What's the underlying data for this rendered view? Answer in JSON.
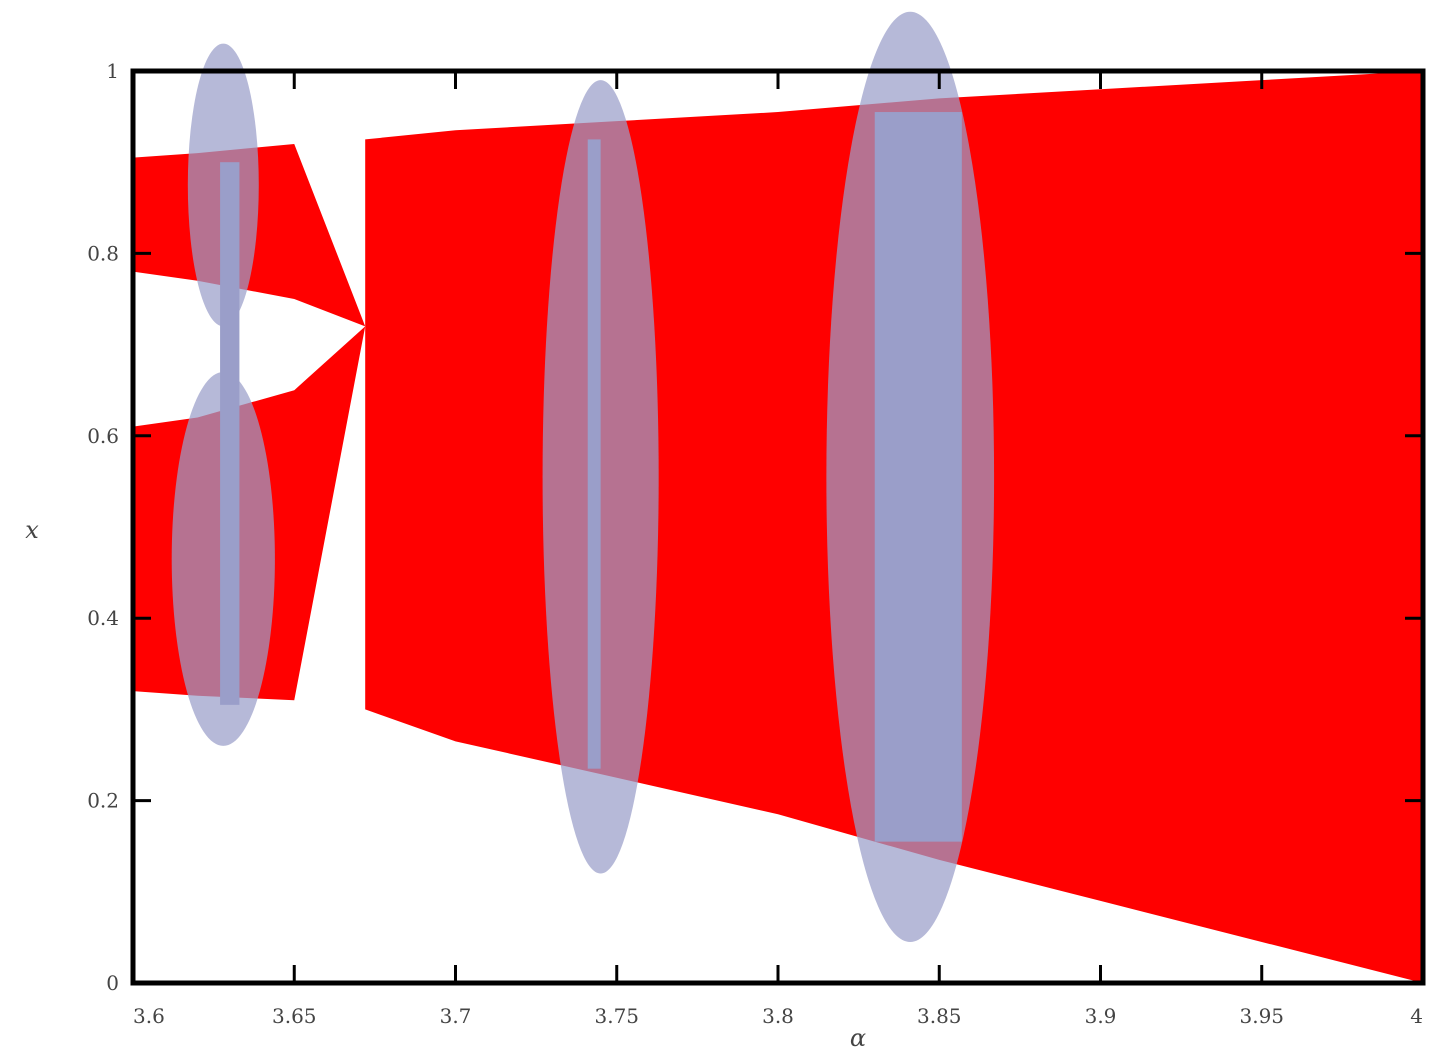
{
  "chart_data": {
    "type": "area",
    "xlabel": "α",
    "ylabel": "x",
    "xlim": [
      3.6,
      4.0
    ],
    "ylim": [
      0,
      1
    ],
    "x_ticks": [
      {
        "value": 3.6,
        "label": "3.6"
      },
      {
        "value": 3.65,
        "label": "3.65"
      },
      {
        "value": 3.7,
        "label": "3.7"
      },
      {
        "value": 3.75,
        "label": "3.75"
      },
      {
        "value": 3.8,
        "label": "3.8"
      },
      {
        "value": 3.85,
        "label": "3.85"
      },
      {
        "value": 3.9,
        "label": "3.9"
      },
      {
        "value": 3.95,
        "label": "3.95"
      },
      {
        "value": 4.0,
        "label": "4"
      }
    ],
    "y_ticks": [
      {
        "value": 0,
        "label": "0"
      },
      {
        "value": 0.2,
        "label": "0.2"
      },
      {
        "value": 0.4,
        "label": "0.4"
      },
      {
        "value": 0.6,
        "label": "0.6"
      },
      {
        "value": 0.8,
        "label": "0.8"
      },
      {
        "value": 1,
        "label": "1"
      }
    ],
    "grid": false,
    "colors": {
      "chaotic_region": "#ff0000",
      "window_highlight": "#9a9ec9",
      "axis": "#000000"
    },
    "bands": [
      {
        "x": [
          3.6,
          3.62,
          3.65,
          3.672
        ],
        "lower": [
          0.78,
          0.77,
          0.75,
          0.72
        ],
        "upper": [
          0.905,
          0.91,
          0.92,
          0.72
        ]
      },
      {
        "x": [
          3.6,
          3.62,
          3.65,
          3.672
        ],
        "lower": [
          0.32,
          0.315,
          0.31,
          0.72
        ],
        "upper": [
          0.61,
          0.62,
          0.65,
          0.72
        ]
      },
      {
        "x": [
          3.672,
          3.7,
          3.75,
          3.8,
          3.85,
          3.9,
          3.95,
          4.0
        ],
        "lower": [
          0.3,
          0.265,
          0.225,
          0.185,
          0.135,
          0.09,
          0.045,
          0.0
        ],
        "upper": [
          0.925,
          0.935,
          0.945,
          0.955,
          0.97,
          0.98,
          0.99,
          1.0
        ]
      }
    ],
    "windows": [
      {
        "center": [
          3.628,
          0.875
        ],
        "rx": 0.011,
        "ry": 0.155
      },
      {
        "center": [
          3.628,
          0.465
        ],
        "rx": 0.016,
        "ry": 0.205
      },
      {
        "center": [
          3.745,
          0.555
        ],
        "rx": 0.018,
        "ry": 0.435
      },
      {
        "center": [
          3.841,
          0.555
        ],
        "rx": 0.026,
        "ry": 0.51
      }
    ],
    "window_cores": [
      {
        "x": [
          3.627,
          3.633
        ],
        "y": [
          0.305,
          0.9
        ]
      },
      {
        "x": [
          3.741,
          3.745
        ],
        "y": [
          0.235,
          0.925
        ]
      },
      {
        "x": [
          3.83,
          3.857
        ],
        "y": [
          0.155,
          0.955
        ]
      }
    ]
  }
}
